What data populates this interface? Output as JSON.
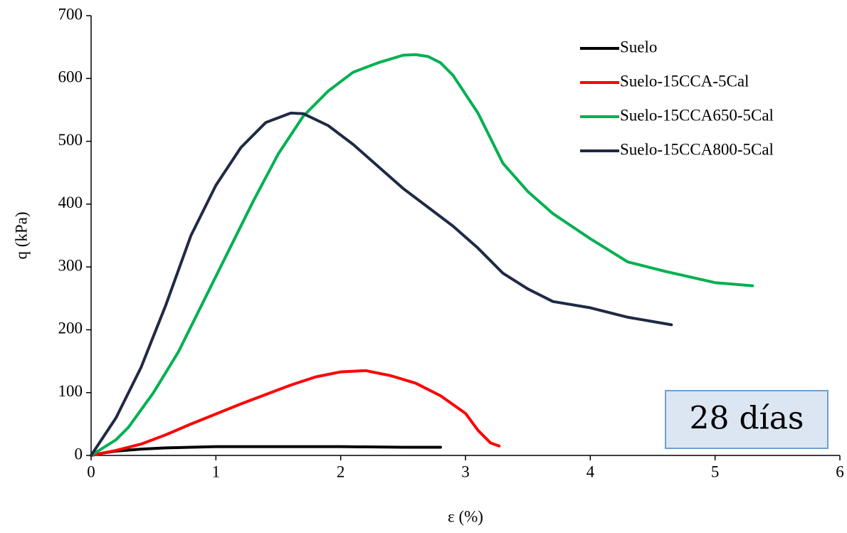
{
  "chart_data": {
    "type": "line",
    "x_label": "ε (%)",
    "y_label": "q (kPa)",
    "annotation": "28 días",
    "xlim": [
      0,
      6
    ],
    "ylim": [
      0,
      700
    ],
    "xticks": [
      0,
      1,
      2,
      3,
      4,
      5,
      6
    ],
    "yticks": [
      0,
      100,
      200,
      300,
      400,
      500,
      600,
      700
    ],
    "grid": false,
    "legend": "upper right",
    "series": [
      {
        "name": "Suelo",
        "color": "#000000",
        "x": [
          0,
          0.1,
          0.2,
          0.4,
          0.6,
          0.8,
          1.0,
          1.5,
          2.0,
          2.5,
          2.8
        ],
        "values": [
          0,
          4,
          7,
          10,
          12,
          13,
          14,
          14,
          14,
          13,
          13
        ]
      },
      {
        "name": "Suelo-15CCA-5Cal",
        "color": "#ff0000",
        "x": [
          0,
          0.2,
          0.4,
          0.6,
          0.8,
          1.0,
          1.2,
          1.4,
          1.6,
          1.8,
          2.0,
          2.2,
          2.4,
          2.6,
          2.8,
          3.0,
          3.1,
          3.2,
          3.27
        ],
        "values": [
          0,
          8,
          18,
          33,
          50,
          66,
          82,
          97,
          112,
          125,
          133,
          135,
          127,
          115,
          95,
          67,
          40,
          20,
          15
        ]
      },
      {
        "name": "Suelo-15CCA650-5Cal",
        "color": "#00b050",
        "x": [
          0,
          0.2,
          0.3,
          0.5,
          0.7,
          0.9,
          1.1,
          1.3,
          1.5,
          1.7,
          1.9,
          2.1,
          2.3,
          2.5,
          2.6,
          2.7,
          2.8,
          2.9,
          3.0,
          3.1,
          3.2,
          3.3,
          3.5,
          3.7,
          4.0,
          4.3,
          4.6,
          5.0,
          5.3
        ],
        "values": [
          0,
          25,
          45,
          100,
          165,
          245,
          325,
          405,
          480,
          540,
          580,
          610,
          625,
          637,
          638,
          635,
          625,
          605,
          575,
          545,
          505,
          465,
          420,
          385,
          345,
          308,
          293,
          275,
          270
        ]
      },
      {
        "name": "Suelo-15CCA800-5Cal",
        "color": "#1f2a44",
        "x": [
          0,
          0.2,
          0.4,
          0.6,
          0.8,
          1.0,
          1.2,
          1.4,
          1.6,
          1.7,
          1.9,
          2.1,
          2.3,
          2.5,
          2.7,
          2.9,
          3.1,
          3.3,
          3.5,
          3.7,
          4.0,
          4.3,
          4.65
        ],
        "values": [
          0,
          60,
          140,
          240,
          350,
          430,
          490,
          530,
          545,
          544,
          525,
          495,
          460,
          425,
          395,
          365,
          330,
          290,
          265,
          245,
          235,
          220,
          208
        ]
      }
    ]
  }
}
